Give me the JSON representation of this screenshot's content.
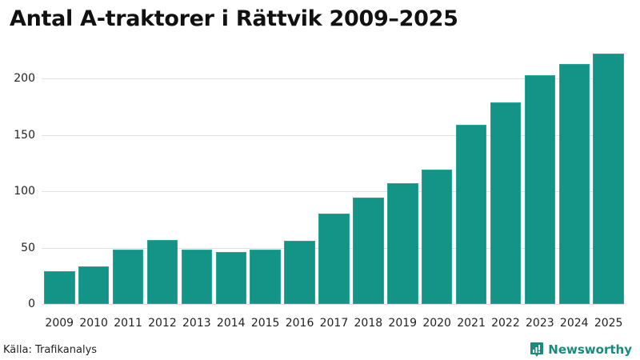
{
  "title": "Antal A-traktorer i Rättvik 2009–2025",
  "source": "Källa: Trafikanalys",
  "brand": {
    "name": "Newsworthy",
    "icon": "bar-chart-speech-bubble-icon",
    "color": "#1a8a7c"
  },
  "colors": {
    "bar": "#139486",
    "grid": "#e2e2e6"
  },
  "y_ticks": [
    "0",
    "50",
    "100",
    "150",
    "200"
  ],
  "x_ticks": [
    "2009",
    "2010",
    "2011",
    "2012",
    "2013",
    "2014",
    "2015",
    "2016",
    "2017",
    "2018",
    "2019",
    "2020",
    "2021",
    "2022",
    "2023",
    "2024",
    "2025"
  ],
  "chart_data": {
    "type": "bar",
    "title": "Antal A-traktorer i Rättvik 2009–2025",
    "xlabel": "",
    "ylabel": "",
    "categories": [
      "2009",
      "2010",
      "2011",
      "2012",
      "2013",
      "2014",
      "2015",
      "2016",
      "2017",
      "2018",
      "2019",
      "2020",
      "2021",
      "2022",
      "2023",
      "2024",
      "2025"
    ],
    "values": [
      29,
      33,
      48,
      57,
      48,
      46,
      48,
      56,
      80,
      94,
      107,
      119,
      159,
      179,
      203,
      213,
      222
    ],
    "ylim": [
      0,
      227
    ],
    "yticks": [
      0,
      50,
      100,
      150,
      200
    ],
    "grid": true,
    "legend": null,
    "source": "Källa: Trafikanalys"
  }
}
